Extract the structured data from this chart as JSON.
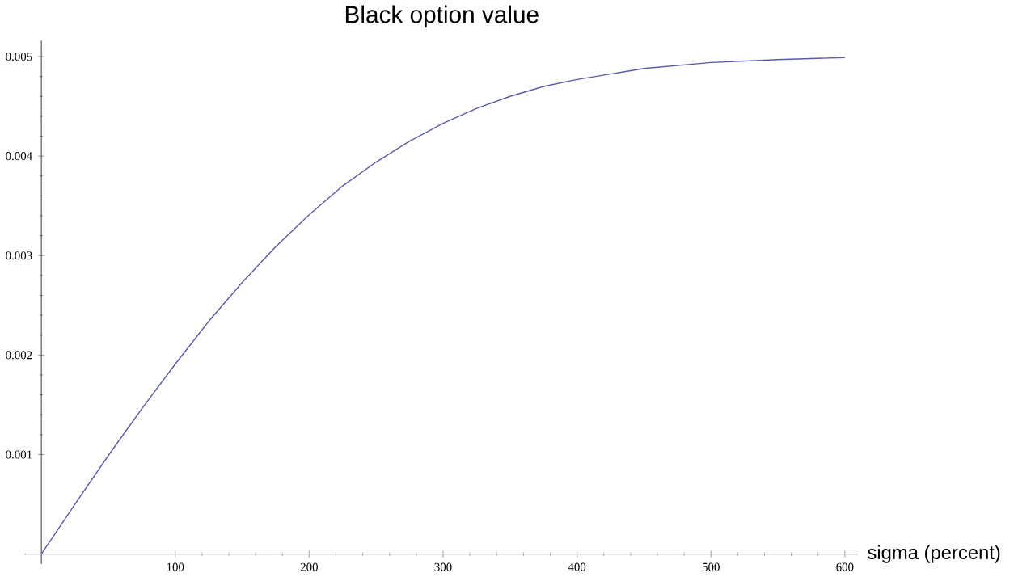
{
  "chart_data": {
    "type": "line",
    "title": "Black option value",
    "xlabel": "sigma (percent)",
    "x": [
      0,
      25,
      50,
      75,
      100,
      125,
      150,
      175,
      200,
      225,
      250,
      275,
      300,
      325,
      350,
      375,
      400,
      450,
      500,
      550,
      600
    ],
    "values": [
      0,
      0.0005,
      0.00099,
      0.00146,
      0.00191,
      0.00234,
      0.00273,
      0.00309,
      0.00341,
      0.0037,
      0.00394,
      0.00415,
      0.00433,
      0.00448,
      0.0046,
      0.0047,
      0.00477,
      0.00488,
      0.00494,
      0.00497,
      0.00499
    ],
    "color": "#5a5aa8",
    "xlim": [
      -12,
      610
    ],
    "ylim": [
      -0.0001,
      0.00516
    ],
    "xticks": [
      100,
      200,
      300,
      400,
      500,
      600
    ],
    "yticks": [
      0.001,
      0.002,
      0.003,
      0.004,
      0.005
    ]
  }
}
